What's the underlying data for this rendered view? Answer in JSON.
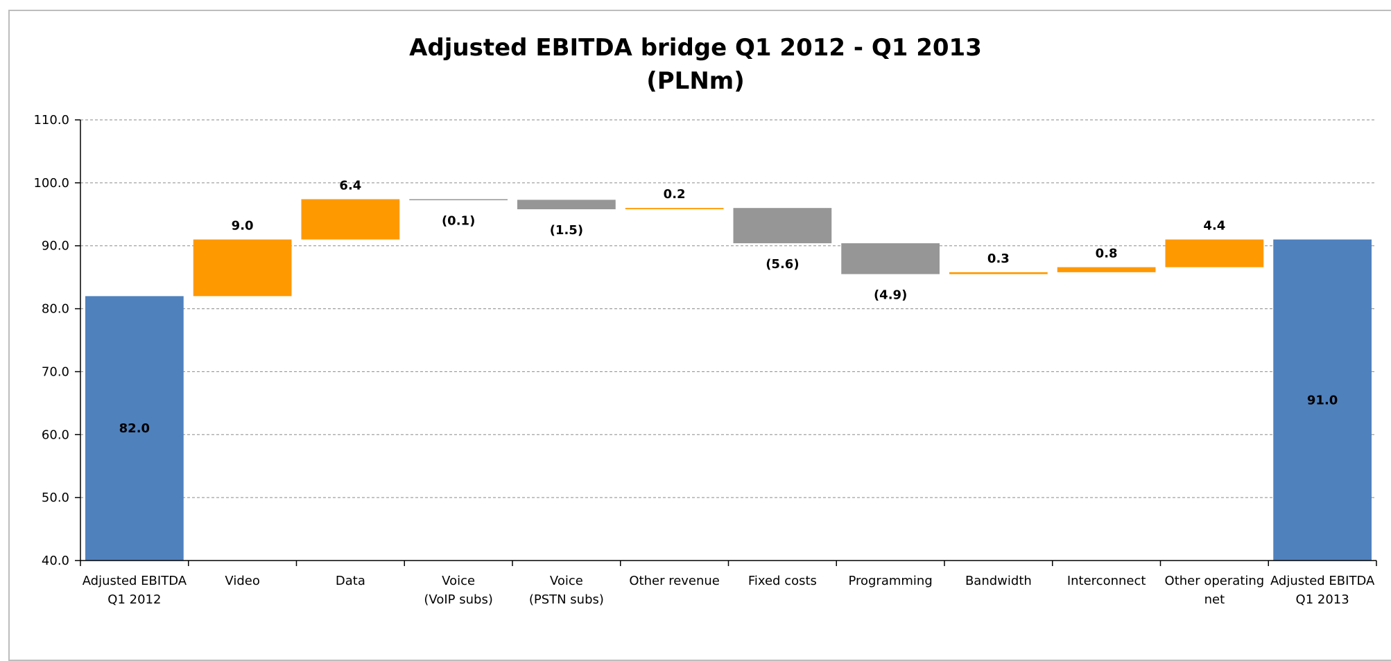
{
  "chart_data": {
    "type": "bar",
    "subtype": "waterfall",
    "title": "Adjusted EBITDA bridge Q1 2012 - Q1 2013",
    "subtitle": "(PLNm)",
    "ylim": [
      40,
      110
    ],
    "yticks": [
      "40.0",
      "50.0",
      "60.0",
      "70.0",
      "80.0",
      "90.0",
      "100.0",
      "110.0"
    ],
    "grid": true,
    "colors": {
      "total": "#4f81bd",
      "increase": "#ff9900",
      "decrease": "#969696"
    },
    "categories": [
      [
        "Adjusted EBITDA",
        "Q1 2012"
      ],
      [
        "Video"
      ],
      [
        "Data"
      ],
      [
        "Voice",
        "(VoIP subs)"
      ],
      [
        "Voice",
        "(PSTN subs)"
      ],
      [
        "Other revenue"
      ],
      [
        "Fixed costs"
      ],
      [
        "Programming"
      ],
      [
        "Bandwidth"
      ],
      [
        "Interconnect"
      ],
      [
        "Other operating",
        "net"
      ],
      [
        "Adjusted EBITDA",
        "Q1 2013"
      ]
    ],
    "bars": [
      {
        "kind": "total",
        "start": 40,
        "end": 82.0,
        "label": "82.0"
      },
      {
        "kind": "increase",
        "start": 82.0,
        "end": 91.0,
        "label": "9.0"
      },
      {
        "kind": "increase",
        "start": 91.0,
        "end": 97.4,
        "label": "6.4"
      },
      {
        "kind": "decrease",
        "start": 97.4,
        "end": 97.3,
        "label": "(0.1)"
      },
      {
        "kind": "decrease",
        "start": 97.3,
        "end": 95.8,
        "label": "(1.5)"
      },
      {
        "kind": "increase",
        "start": 95.8,
        "end": 96.0,
        "label": "0.2"
      },
      {
        "kind": "decrease",
        "start": 96.0,
        "end": 90.4,
        "label": "(5.6)"
      },
      {
        "kind": "decrease",
        "start": 90.4,
        "end": 85.5,
        "label": "(4.9)"
      },
      {
        "kind": "increase",
        "start": 85.5,
        "end": 85.8,
        "label": "0.3"
      },
      {
        "kind": "increase",
        "start": 85.8,
        "end": 86.6,
        "label": "0.8"
      },
      {
        "kind": "increase",
        "start": 86.6,
        "end": 91.0,
        "label": "4.4"
      },
      {
        "kind": "total",
        "start": 40,
        "end": 91.0,
        "label": "91.0"
      }
    ]
  }
}
